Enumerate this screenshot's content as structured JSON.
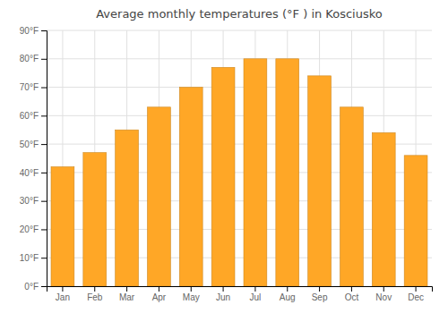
{
  "chart_data": {
    "type": "bar",
    "title": "Average monthly temperatures (°F ) in Kosciusko",
    "categories": [
      "Jan",
      "Feb",
      "Mar",
      "Apr",
      "May",
      "Jun",
      "Jul",
      "Aug",
      "Sep",
      "Oct",
      "Nov",
      "Dec"
    ],
    "values": [
      42,
      47,
      55,
      63,
      70,
      77,
      80,
      80,
      74,
      63,
      54,
      46
    ],
    "color": "#FFA726",
    "ylim": [
      0,
      90
    ],
    "yticks": [
      {
        "value": 0,
        "label": "0°F"
      },
      {
        "value": 10,
        "label": "10°F"
      },
      {
        "value": 20,
        "label": "20°F"
      },
      {
        "value": 30,
        "label": "30°F"
      },
      {
        "value": 40,
        "label": "40°F"
      },
      {
        "value": 50,
        "label": "50°F"
      },
      {
        "value": 60,
        "label": "60°F"
      },
      {
        "value": 70,
        "label": "70°F"
      },
      {
        "value": 80,
        "label": "80°F"
      },
      {
        "value": 90,
        "label": "90°F"
      }
    ],
    "grid": true
  }
}
